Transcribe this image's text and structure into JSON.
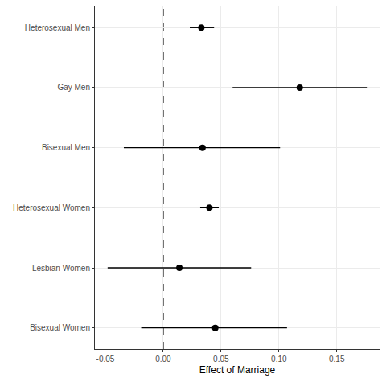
{
  "chart_data": {
    "type": "dot_whisker",
    "x_label": "Effect of Marriage",
    "categories": [
      "Heterosexual Men",
      "Gay Men",
      "Bisexual Men",
      "Heterosexual Women",
      "Lesbian Women",
      "Bisexual Women"
    ],
    "values": [
      0.033,
      0.118,
      0.034,
      0.04,
      0.014,
      0.045
    ],
    "ci_low": [
      0.023,
      0.06,
      -0.034,
      0.032,
      -0.048,
      -0.019
    ],
    "ci_high": [
      0.044,
      0.176,
      0.101,
      0.048,
      0.076,
      0.107
    ],
    "reference_line": 0,
    "color": "#000000",
    "xlim": [
      -0.059,
      0.187
    ],
    "xticks": [
      {
        "value": -0.05,
        "label": "-0.05"
      },
      {
        "value": 0,
        "label": "0.00"
      },
      {
        "value": 0.05,
        "label": "0.05"
      },
      {
        "value": 0.1,
        "label": "0.10"
      },
      {
        "value": 0.15,
        "label": "0.15"
      }
    ],
    "grid": true
  }
}
